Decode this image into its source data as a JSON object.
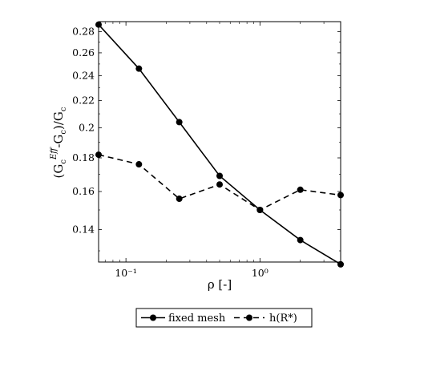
{
  "chart_data": {
    "type": "line",
    "xlabel": "ρ [-]",
    "ylabel": "(G_c^{Eff}-G_c)/G_c",
    "xscale": "log",
    "yscale": "log",
    "xlim": [
      0.0625,
      4
    ],
    "ylim": [
      0.125,
      0.29
    ],
    "x_tick_labels": [
      "10⁻¹",
      "10⁰"
    ],
    "y_ticks": [
      0.14,
      0.16,
      0.18,
      0.2,
      0.22,
      0.24,
      0.26,
      0.28
    ],
    "y_tick_labels": [
      "0.14",
      "0.16",
      "0.18",
      "0.2",
      "0.22",
      "0.24",
      "0.26",
      "0.28"
    ],
    "grid": false,
    "legend_position": "bottom",
    "x": [
      0.0625,
      0.125,
      0.25,
      0.5,
      1,
      2,
      4
    ],
    "series": [
      {
        "name": "fixed mesh",
        "style": "solid",
        "marker": "circle",
        "color": "#000000",
        "values": [
          0.287,
          0.246,
          0.204,
          0.169,
          0.15,
          0.135,
          0.124
        ]
      },
      {
        "name": "h(R*)",
        "style": "dashed",
        "marker": "circle",
        "color": "#000000",
        "values": [
          0.182,
          0.176,
          0.156,
          0.164,
          0.15,
          0.161,
          0.158
        ]
      }
    ]
  }
}
